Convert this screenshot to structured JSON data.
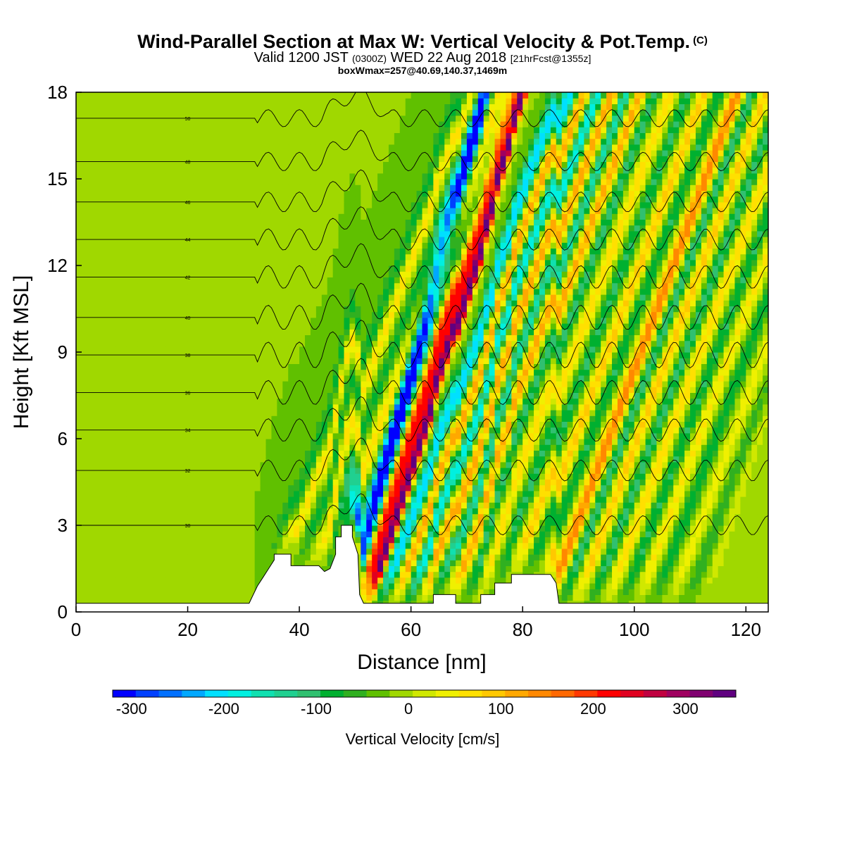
{
  "title": {
    "main": "Wind-Parallel Section at Max W: Vertical Velocity & Pot.Temp.",
    "copyright": "(C)",
    "valid_prefix": "Valid 1200 JST",
    "valid_utc": "(0300Z)",
    "valid_date": "WED 22 Aug 2018",
    "forecast": "[21hrFcst@1355z]",
    "box_info": "boxWmax=257@40.69,140.37,1469m"
  },
  "chart_data": {
    "type": "heatmap",
    "xlabel": "Distance [nm]",
    "ylabel": "Height [Kft MSL]",
    "xlim": [
      0,
      124
    ],
    "ylim": [
      0,
      18
    ],
    "x_ticks": [
      0,
      20,
      40,
      60,
      80,
      100,
      120
    ],
    "y_ticks": [
      0,
      3,
      6,
      9,
      12,
      15,
      18
    ],
    "colorbar": {
      "title": "Vertical Velocity [cm/s]",
      "tick_values": [
        -300,
        -200,
        -100,
        0,
        100,
        200,
        300
      ],
      "tick_labels": [
        "-300",
        "-200",
        "-100",
        "0",
        "100",
        "200",
        "300"
      ],
      "min": -325,
      "max": 350,
      "colors": [
        "#0000ff",
        "#0040ff",
        "#0070ff",
        "#00a8ff",
        "#00e0ff",
        "#00f0e0",
        "#10e0b0",
        "#20d090",
        "#30c070",
        "#00b030",
        "#30b020",
        "#60c000",
        "#a0d800",
        "#d0e800",
        "#f0f000",
        "#ffe000",
        "#ffc800",
        "#ffa800",
        "#ff8800",
        "#ff6800",
        "#ff3800",
        "#ff0000",
        "#e00020",
        "#c00040",
        "#a00060",
        "#800070",
        "#600080"
      ]
    },
    "terrain": [
      [
        0,
        0.3
      ],
      [
        31,
        0.3
      ],
      [
        31.5,
        0.5
      ],
      [
        32.5,
        0.9
      ],
      [
        33.5,
        1.2
      ],
      [
        34.5,
        1.5
      ],
      [
        35.5,
        1.8
      ],
      [
        35.5,
        2.0
      ],
      [
        38.5,
        2.0
      ],
      [
        38.5,
        1.6
      ],
      [
        43.5,
        1.6
      ],
      [
        44.5,
        1.4
      ],
      [
        45.5,
        1.5
      ],
      [
        46.5,
        2.0
      ],
      [
        46.5,
        2.6
      ],
      [
        47.5,
        2.6
      ],
      [
        47.5,
        3.0
      ],
      [
        49.5,
        3.0
      ],
      [
        49.5,
        2.6
      ],
      [
        50.5,
        2.0
      ],
      [
        50.8,
        0.6
      ],
      [
        51.5,
        0.3
      ],
      [
        64,
        0.3
      ],
      [
        64,
        0.6
      ],
      [
        68,
        0.6
      ],
      [
        68,
        0.3
      ],
      [
        72.5,
        0.3
      ],
      [
        72.5,
        0.6
      ],
      [
        75,
        0.6
      ],
      [
        75,
        1.0
      ],
      [
        78,
        1.0
      ],
      [
        78,
        1.3
      ],
      [
        85,
        1.3
      ],
      [
        86,
        1.0
      ],
      [
        86.5,
        0.3
      ],
      [
        124,
        0.3
      ]
    ],
    "w_bands": [
      {
        "x0": 35.5,
        "tilt": 3.5,
        "w": -70,
        "width": 1.6
      },
      {
        "x0": 37.0,
        "tilt": 3.5,
        "w": 110,
        "width": 1.2
      },
      {
        "x0": 40.0,
        "tilt": 3.5,
        "w": -60,
        "width": 1.3
      },
      {
        "x0": 42.5,
        "tilt": 3.5,
        "w": 90,
        "width": 1.4
      },
      {
        "x0": 45.5,
        "tilt": 3.5,
        "w": -90,
        "width": 1.3
      },
      {
        "x0": 49.0,
        "tilt": 2.5,
        "w": -300,
        "width": 1.3
      },
      {
        "x0": 50.5,
        "tilt": 3.0,
        "w": 240,
        "width": 1.5
      },
      {
        "x0": 52.5,
        "tilt": 3.0,
        "w": 330,
        "width": 0.9
      },
      {
        "x0": 54.5,
        "tilt": 3.5,
        "w": -200,
        "width": 1.4
      },
      {
        "x0": 57.0,
        "tilt": 3.5,
        "w": 150,
        "width": 1.3
      },
      {
        "x0": 59.5,
        "tilt": 3.5,
        "w": -180,
        "width": 1.3
      },
      {
        "x0": 62.0,
        "tilt": 3.5,
        "w": 150,
        "width": 1.4
      },
      {
        "x0": 64.5,
        "tilt": 3.5,
        "w": -140,
        "width": 1.3
      },
      {
        "x0": 67.0,
        "tilt": 3.5,
        "w": 140,
        "width": 1.4
      },
      {
        "x0": 69.5,
        "tilt": 3.5,
        "w": -90,
        "width": 1.3
      },
      {
        "x0": 72.5,
        "tilt": 3.5,
        "w": 90,
        "width": 1.4
      },
      {
        "x0": 75.5,
        "tilt": 3.5,
        "w": -80,
        "width": 1.3
      },
      {
        "x0": 78.5,
        "tilt": 3.5,
        "w": 110,
        "width": 1.4
      },
      {
        "x0": 81.0,
        "tilt": 3.5,
        "w": -80,
        "width": 1.3
      },
      {
        "x0": 84.5,
        "tilt": 3.5,
        "w": 170,
        "width": 1.5
      },
      {
        "x0": 87.0,
        "tilt": 3.5,
        "w": -110,
        "width": 1.3
      },
      {
        "x0": 89.5,
        "tilt": 3.5,
        "w": 110,
        "width": 1.4
      },
      {
        "x0": 92.5,
        "tilt": 3.5,
        "w": -90,
        "width": 1.3
      },
      {
        "x0": 95.0,
        "tilt": 3.5,
        "w": 100,
        "width": 1.4
      },
      {
        "x0": 98.0,
        "tilt": 3.5,
        "w": -80,
        "width": 1.3
      },
      {
        "x0": 100.5,
        "tilt": 3.5,
        "w": 80,
        "width": 1.4
      },
      {
        "x0": 103.5,
        "tilt": 3.5,
        "w": -70,
        "width": 1.3
      },
      {
        "x0": 106.5,
        "tilt": 3.5,
        "w": 60,
        "width": 1.4
      },
      {
        "x0": 109.5,
        "tilt": 3.5,
        "w": -50,
        "width": 1.3
      },
      {
        "x0": 112.5,
        "tilt": 3.0,
        "w": 40,
        "width": 1.4
      }
    ],
    "background_w": [
      {
        "x_range": [
          0,
          32
        ],
        "w": -10
      },
      {
        "x_range": [
          32,
          124
        ],
        "w": -25
      }
    ],
    "theta_contours": [
      {
        "value": 30,
        "y": 3.0,
        "label": "30"
      },
      {
        "value": 32,
        "y": 4.9,
        "label": "32"
      },
      {
        "value": 34,
        "y": 6.3,
        "label": "34"
      },
      {
        "value": 36,
        "y": 7.6,
        "label": "36"
      },
      {
        "value": 38,
        "y": 8.9,
        "label": "38"
      },
      {
        "value": 40,
        "y": 10.2,
        "label": "40"
      },
      {
        "value": 42,
        "y": 11.6,
        "label": "42"
      },
      {
        "value": 44,
        "y": 12.9,
        "label": "44"
      },
      {
        "value": 46,
        "y": 14.2,
        "label": "46"
      },
      {
        "value": 48,
        "y": 15.6,
        "label": "48"
      },
      {
        "value": 50,
        "y": 17.1,
        "label": "50"
      }
    ]
  }
}
